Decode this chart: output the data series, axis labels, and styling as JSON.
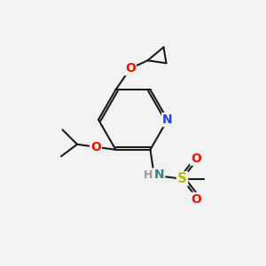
{
  "background_color": "#f2f2f2",
  "bond_color": "#1a1a1a",
  "bond_width": 1.5,
  "atom_colors": {
    "C": "#1a1a1a",
    "N_ring": "#1e3fff",
    "N_amine": "#3d8080",
    "O": "#ee1100",
    "S": "#bbbb00",
    "H": "#999999"
  },
  "font_size_atom": 10,
  "font_size_h": 9
}
